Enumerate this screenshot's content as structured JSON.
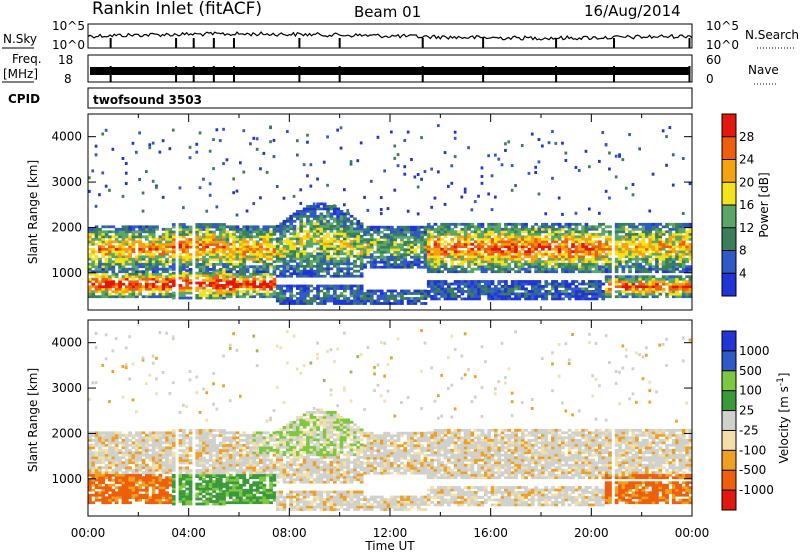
{
  "header": {
    "station": "Rankin Inlet (fitACF)",
    "beam": "Beam 01",
    "date": "16/Aug/2014"
  },
  "summary_panels": {
    "nsky": {
      "left_label": "N.Sky",
      "top_tick": "10^5",
      "bottom_tick": "10^0",
      "right_label": "N.Search",
      "right_top": "10^5",
      "right_bottom": "10^0"
    },
    "freq": {
      "left_label_1": "Freq.",
      "left_label_2": "[MHz]",
      "top_tick": "18",
      "bottom_tick": "8",
      "right_label": "Nave",
      "right_top": "60",
      "right_bottom": "0"
    },
    "cpid": {
      "label": "CPID",
      "value": "twofsound 3503"
    }
  },
  "colors": {
    "power_scale": [
      "#1f35d6",
      "#2e59c9",
      "#3a7f5a",
      "#5aa56a",
      "#f4e21a",
      "#f4a20f",
      "#ee5f0c",
      "#e2180c"
    ],
    "velocity_scale": [
      "#e2180c",
      "#ee5f0c",
      "#f0a020",
      "#f2e0a8",
      "#d0d0cc",
      "#3a9a3a",
      "#7ec841",
      "#2e59c9",
      "#1f35d6"
    ]
  },
  "chart_data": [
    {
      "type": "heatmap",
      "name": "power",
      "xlabel": "",
      "ylabel": "Slant Range [km]",
      "xlim_hours": [
        0,
        24
      ],
      "ylim_km": [
        180,
        4500
      ],
      "yticks": [
        1000,
        2000,
        3000,
        4000
      ],
      "colorbar": {
        "label": "Power [dB]",
        "ticks": [
          "4",
          "8",
          "12",
          "16",
          "20",
          "24",
          "28"
        ],
        "range": [
          0,
          32
        ]
      }
    },
    {
      "type": "heatmap",
      "name": "velocity",
      "xlabel": "Time UT",
      "ylabel": "Slant Range [km]",
      "xlim_hours": [
        0,
        24
      ],
      "ylim_km": [
        180,
        4500
      ],
      "yticks": [
        1000,
        2000,
        3000,
        4000
      ],
      "xticks": [
        "00:00",
        "04:00",
        "08:00",
        "12:00",
        "16:00",
        "20:00",
        "00:00"
      ],
      "colorbar": {
        "label": "Velocity [m s^-1]",
        "ticks": [
          "1000",
          "500",
          "100",
          "25",
          "-25",
          "-100",
          "-500",
          "-1000"
        ]
      }
    }
  ]
}
